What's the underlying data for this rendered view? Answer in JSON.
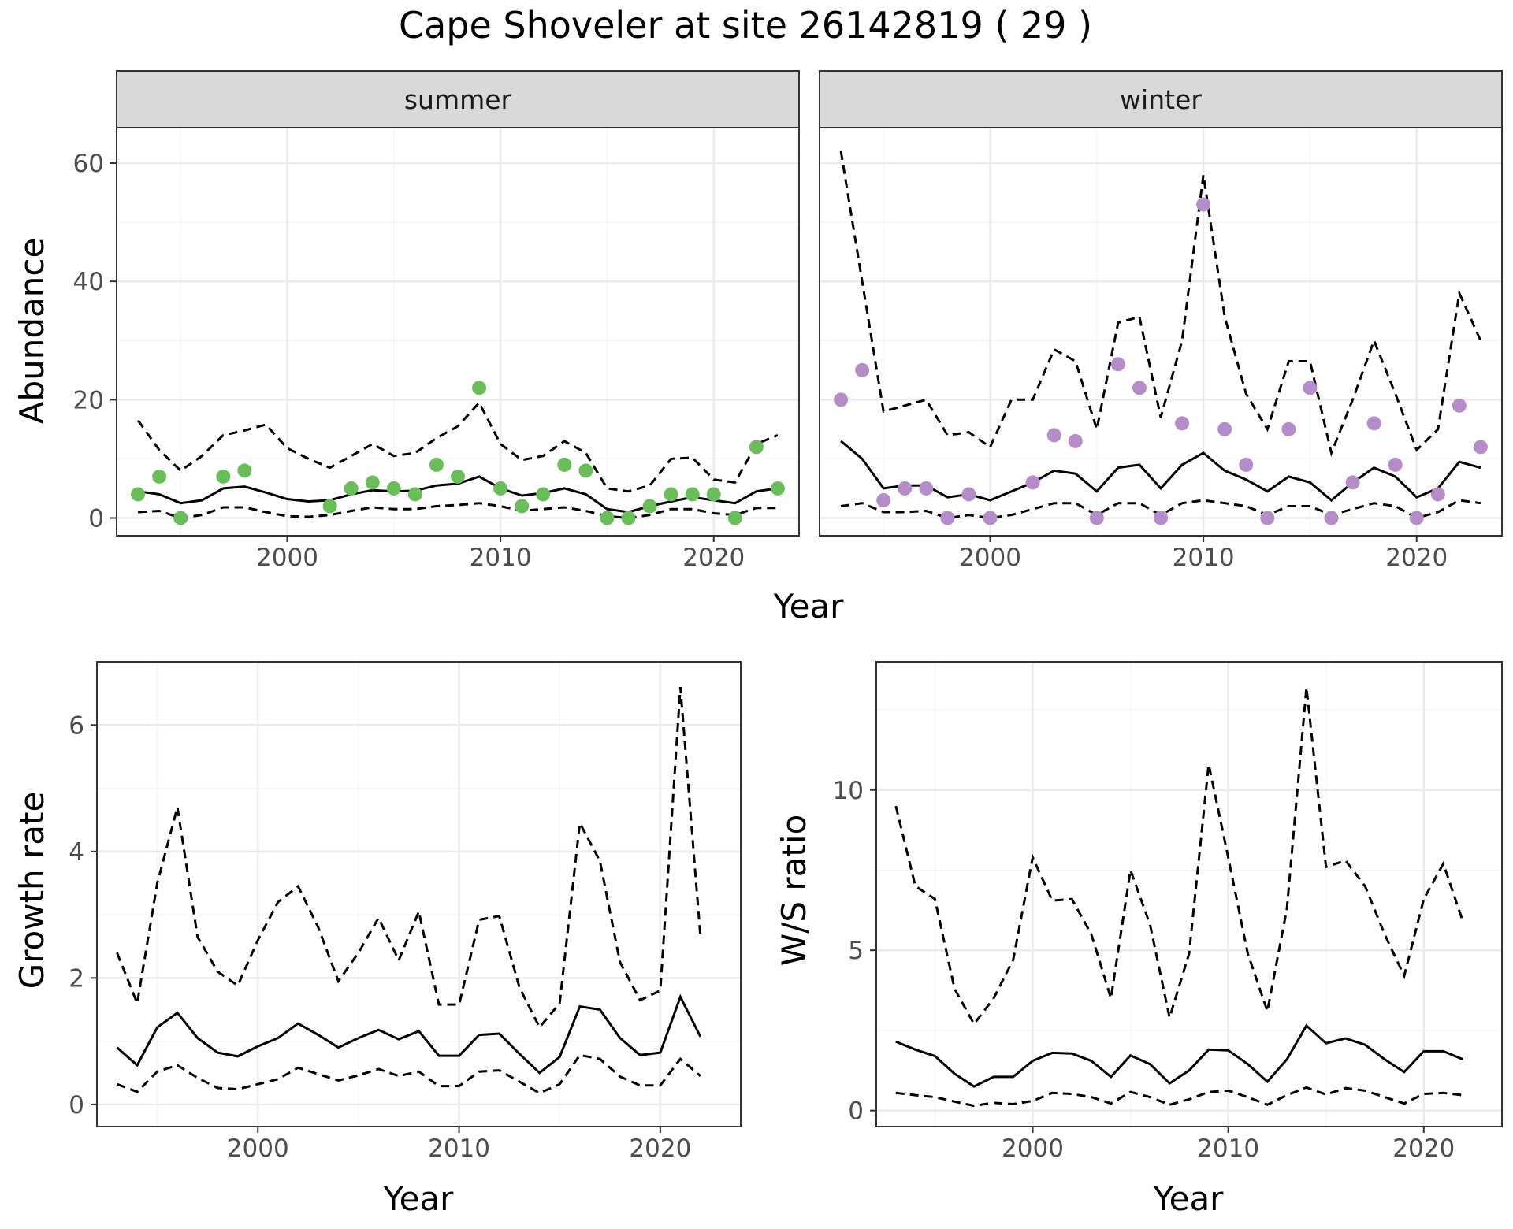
{
  "title": "Cape Shoveler at site 26142819 ( 29 )",
  "colors": {
    "summer_points": "#6abe5a",
    "winter_points": "#b48cc8",
    "line": "#000000",
    "grid_major": "#ebebeb",
    "grid_minor": "#f5f5f5",
    "strip_bg": "#d9d9d9",
    "panel_border": "#333333"
  },
  "chart_data": [
    {
      "id": "abundance",
      "type": "line+scatter",
      "facets": [
        "summer",
        "winter"
      ],
      "xlabel": "Year",
      "ylabel": "Abundance",
      "xlim": [
        1992,
        2024
      ],
      "ylim": [
        -3,
        66
      ],
      "xticks": [
        2000,
        2010,
        2020
      ],
      "yticks": [
        0,
        20,
        40,
        60
      ],
      "panels": [
        {
          "facet": "summer",
          "point_color": "#6abe5a",
          "x": [
            1993,
            1994,
            1995,
            1996,
            1997,
            1998,
            1999,
            2000,
            2001,
            2002,
            2003,
            2004,
            2005,
            2006,
            2007,
            2008,
            2009,
            2010,
            2011,
            2012,
            2013,
            2014,
            2015,
            2016,
            2017,
            2018,
            2019,
            2020,
            2021,
            2022,
            2023
          ],
          "mean": [
            4.5,
            4.0,
            2.5,
            3.0,
            5.0,
            5.3,
            4.3,
            3.2,
            2.8,
            3.0,
            4.0,
            4.7,
            4.5,
            4.6,
            5.5,
            5.8,
            7.0,
            5.0,
            3.8,
            4.2,
            5.0,
            4.0,
            1.5,
            1.0,
            2.0,
            2.8,
            3.5,
            3.0,
            2.5,
            4.5,
            5.0
          ],
          "upper": [
            16.5,
            11.5,
            8.0,
            10.5,
            14.0,
            14.8,
            15.8,
            11.8,
            10.0,
            8.5,
            10.5,
            12.5,
            10.5,
            11.0,
            13.5,
            15.5,
            19.5,
            12.5,
            9.8,
            10.5,
            13.0,
            11.0,
            5.0,
            4.5,
            5.5,
            10.0,
            10.2,
            6.5,
            6.0,
            12.5,
            14.0
          ],
          "lower": [
            1.0,
            1.2,
            0.0,
            0.5,
            1.8,
            1.8,
            1.0,
            0.3,
            0.2,
            0.5,
            1.2,
            1.8,
            1.5,
            1.5,
            2.0,
            2.2,
            2.5,
            2.0,
            1.2,
            1.5,
            1.8,
            1.2,
            0.3,
            0.0,
            0.5,
            1.5,
            1.5,
            0.8,
            0.5,
            1.7,
            1.7
          ],
          "obs_x": [
            1993,
            1994,
            1995,
            1997,
            1998,
            2002,
            2003,
            2004,
            2005,
            2006,
            2007,
            2008,
            2009,
            2010,
            2011,
            2012,
            2013,
            2014,
            2015,
            2016,
            2017,
            2018,
            2019,
            2020,
            2021,
            2022,
            2023
          ],
          "obs_y": [
            4,
            7,
            0,
            7,
            8,
            2,
            5,
            6,
            5,
            4,
            9,
            7,
            22,
            5,
            2,
            4,
            9,
            8,
            0,
            0,
            2,
            4,
            4,
            4,
            0,
            12,
            5
          ]
        },
        {
          "facet": "winter",
          "point_color": "#b48cc8",
          "x": [
            1993,
            1994,
            1995,
            1996,
            1997,
            1998,
            1999,
            2000,
            2001,
            2002,
            2003,
            2004,
            2005,
            2006,
            2007,
            2008,
            2009,
            2010,
            2011,
            2012,
            2013,
            2014,
            2015,
            2016,
            2017,
            2018,
            2019,
            2020,
            2021,
            2022,
            2023
          ],
          "mean": [
            13.0,
            10.0,
            5.0,
            5.5,
            5.5,
            3.5,
            4.0,
            3.0,
            4.5,
            6.0,
            8.0,
            7.5,
            4.5,
            8.5,
            9.0,
            5.0,
            9.0,
            11.0,
            8.0,
            6.5,
            4.5,
            7.0,
            6.0,
            3.0,
            6.0,
            8.5,
            7.0,
            3.5,
            5.0,
            9.5,
            8.5
          ],
          "upper": [
            62.0,
            40.0,
            18.0,
            19.0,
            20.0,
            14.0,
            14.5,
            12.0,
            20.0,
            20.0,
            28.5,
            26.5,
            15.0,
            33.0,
            34.0,
            17.0,
            30.0,
            58.0,
            34.0,
            21.0,
            15.0,
            26.5,
            26.5,
            11.0,
            20.0,
            30.0,
            21.0,
            11.5,
            15.0,
            38.0,
            30.0
          ],
          "lower": [
            2.0,
            2.5,
            1.0,
            1.0,
            1.2,
            0.0,
            0.5,
            0.0,
            0.5,
            1.5,
            2.5,
            2.5,
            0.5,
            2.5,
            2.5,
            0.5,
            2.5,
            3.0,
            2.5,
            2.0,
            0.5,
            2.0,
            2.0,
            0.5,
            1.5,
            2.5,
            2.0,
            0.0,
            1.0,
            3.0,
            2.5
          ],
          "obs_x": [
            1993,
            1994,
            1995,
            1996,
            1997,
            1998,
            1999,
            2000,
            2002,
            2003,
            2004,
            2005,
            2006,
            2007,
            2008,
            2009,
            2010,
            2011,
            2012,
            2013,
            2014,
            2015,
            2016,
            2017,
            2018,
            2019,
            2020,
            2021,
            2022,
            2023
          ],
          "obs_y": [
            20,
            25,
            3,
            5,
            5,
            0,
            4,
            0,
            6,
            14,
            13,
            0,
            26,
            22,
            0,
            16,
            53,
            15,
            9,
            0,
            15,
            22,
            0,
            6,
            16,
            9,
            0,
            4,
            19,
            12
          ]
        }
      ]
    },
    {
      "id": "growth",
      "type": "line",
      "xlabel": "Year",
      "ylabel": "Growth rate",
      "xlim": [
        1992,
        2024
      ],
      "ylim": [
        -0.35,
        7.0
      ],
      "xticks": [
        2000,
        2010,
        2020
      ],
      "yticks": [
        0,
        2,
        4,
        6
      ],
      "x": [
        1993,
        1994,
        1995,
        1996,
        1997,
        1998,
        1999,
        2000,
        2001,
        2002,
        2003,
        2004,
        2005,
        2006,
        2007,
        2008,
        2009,
        2010,
        2011,
        2012,
        2013,
        2014,
        2015,
        2016,
        2017,
        2018,
        2019,
        2020,
        2021,
        2022
      ],
      "mean": [
        0.9,
        0.62,
        1.22,
        1.45,
        1.05,
        0.82,
        0.76,
        0.92,
        1.05,
        1.28,
        1.1,
        0.9,
        1.05,
        1.18,
        1.03,
        1.16,
        0.77,
        0.77,
        1.1,
        1.12,
        0.8,
        0.5,
        0.75,
        1.55,
        1.5,
        1.05,
        0.78,
        0.82,
        1.7,
        1.07
      ],
      "upper": [
        2.4,
        1.6,
        3.5,
        4.7,
        2.65,
        2.1,
        1.88,
        2.6,
        3.2,
        3.45,
        2.8,
        1.95,
        2.4,
        2.95,
        2.28,
        3.05,
        1.58,
        1.58,
        2.92,
        2.98,
        1.85,
        1.22,
        1.6,
        4.45,
        3.85,
        2.25,
        1.65,
        1.8,
        6.6,
        2.65
      ],
      "lower": [
        0.32,
        0.2,
        0.52,
        0.62,
        0.42,
        0.26,
        0.24,
        0.32,
        0.4,
        0.58,
        0.48,
        0.38,
        0.46,
        0.56,
        0.45,
        0.52,
        0.29,
        0.29,
        0.52,
        0.54,
        0.36,
        0.18,
        0.32,
        0.78,
        0.72,
        0.44,
        0.3,
        0.3,
        0.72,
        0.45
      ]
    },
    {
      "id": "ws_ratio",
      "type": "line",
      "xlabel": "Year",
      "ylabel": "W/S ratio",
      "xlim": [
        1992,
        2024
      ],
      "ylim": [
        -0.5,
        14.0
      ],
      "xticks": [
        2000,
        2010,
        2020
      ],
      "yticks": [
        0,
        5,
        10
      ],
      "x": [
        1993,
        1994,
        1995,
        1996,
        1997,
        1998,
        1999,
        2000,
        2001,
        2002,
        2003,
        2004,
        2005,
        2006,
        2007,
        2008,
        2009,
        2010,
        2011,
        2012,
        2013,
        2014,
        2015,
        2016,
        2017,
        2018,
        2019,
        2020,
        2021,
        2022
      ],
      "mean": [
        2.15,
        1.9,
        1.7,
        1.15,
        0.75,
        1.05,
        1.05,
        1.55,
        1.8,
        1.78,
        1.55,
        1.05,
        1.72,
        1.45,
        0.85,
        1.25,
        1.9,
        1.88,
        1.45,
        0.9,
        1.6,
        2.65,
        2.1,
        2.25,
        2.05,
        1.6,
        1.2,
        1.85,
        1.85,
        1.6
      ],
      "upper": [
        9.5,
        7.0,
        6.6,
        3.8,
        2.7,
        3.5,
        4.7,
        7.9,
        6.55,
        6.6,
        5.5,
        3.5,
        7.5,
        5.8,
        2.9,
        4.9,
        10.8,
        7.9,
        4.9,
        3.1,
        6.3,
        13.2,
        7.6,
        7.8,
        7.0,
        5.5,
        4.2,
        6.6,
        7.7,
        5.9
      ],
      "lower": [
        0.55,
        0.48,
        0.42,
        0.28,
        0.15,
        0.24,
        0.2,
        0.3,
        0.55,
        0.52,
        0.42,
        0.22,
        0.58,
        0.42,
        0.18,
        0.35,
        0.58,
        0.62,
        0.42,
        0.18,
        0.48,
        0.72,
        0.5,
        0.7,
        0.62,
        0.42,
        0.22,
        0.52,
        0.55,
        0.48
      ]
    }
  ]
}
